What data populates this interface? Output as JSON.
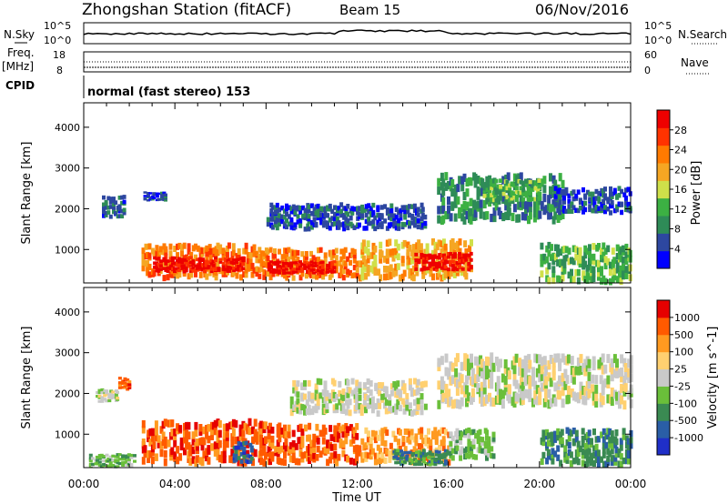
{
  "header": {
    "station": "Zhongshan Station (fitACF)",
    "beam": "Beam 15",
    "date": "06/Nov/2016"
  },
  "sky_panel": {
    "left_label": "N.Sky",
    "right_label": "N.Search",
    "left_ticks": [
      "10^5",
      "10^0"
    ],
    "right_ticks": [
      "10^5",
      "10^0"
    ]
  },
  "freq_panel": {
    "left_label_1": "Freq.",
    "left_label_2": "[MHz]",
    "right_label": "Nave",
    "left_ticks": [
      "18",
      "8"
    ],
    "right_ticks": [
      "60",
      "0"
    ]
  },
  "cpid_panel": {
    "label": "CPID",
    "text": "normal (fast stereo) 153"
  },
  "colors": {
    "power": [
      "#0000ff",
      "#2d47a0",
      "#2e8b57",
      "#3cb043",
      "#cfe04a",
      "#f5a623",
      "#ff7a00",
      "#ff3300",
      "#ee0000"
    ],
    "velocity": [
      "#e60000",
      "#ff5a00",
      "#ff9a20",
      "#ffd070",
      "#c9c9c9",
      "#6abf3a",
      "#3a8a52",
      "#2a5ea6",
      "#1f2fc8"
    ]
  },
  "chart_data": [
    {
      "type": "heatmap",
      "name": "power",
      "ylabel": "Slant Range [km]",
      "xlabel": "",
      "y_ticks": [
        "1000",
        "2000",
        "3000",
        "4000"
      ],
      "ylim": [
        180,
        4600
      ],
      "x_ticks": [
        "00:00",
        "04:00",
        "08:00",
        "12:00",
        "16:00",
        "20:00",
        "00:00"
      ],
      "colorbar_label": "Power [dB]",
      "colorbar_ticks": [
        "4",
        "8",
        "12",
        "16",
        "20",
        "24",
        "28"
      ],
      "blobs": [
        {
          "t": [
            0.8,
            1.8
          ],
          "r": [
            1800,
            2300
          ],
          "level": 1
        },
        {
          "t": [
            2.6,
            3.6
          ],
          "r": [
            2200,
            2400
          ],
          "level": 1
        },
        {
          "t": [
            2.5,
            7.5
          ],
          "r": [
            300,
            1100
          ],
          "level": 6
        },
        {
          "t": [
            3.0,
            7.0
          ],
          "r": [
            450,
            800
          ],
          "level": 8
        },
        {
          "t": [
            7.5,
            12.0
          ],
          "r": [
            300,
            1000
          ],
          "level": 6
        },
        {
          "t": [
            8.0,
            11.0
          ],
          "r": [
            400,
            700
          ],
          "level": 8
        },
        {
          "t": [
            12.0,
            17.0
          ],
          "r": [
            300,
            1200
          ],
          "level": 5
        },
        {
          "t": [
            14.5,
            17.0
          ],
          "r": [
            500,
            900
          ],
          "level": 8
        },
        {
          "t": [
            8.0,
            15.0
          ],
          "r": [
            1500,
            2100
          ],
          "level": 1
        },
        {
          "t": [
            15.5,
            21.0
          ],
          "r": [
            1700,
            2800
          ],
          "level": 2
        },
        {
          "t": [
            17.5,
            20.0
          ],
          "r": [
            2200,
            2700
          ],
          "level": 3
        },
        {
          "t": [
            20.5,
            24.0
          ],
          "r": [
            1900,
            2500
          ],
          "level": 1
        },
        {
          "t": [
            20.0,
            24.0
          ],
          "r": [
            200,
            1100
          ],
          "level": 3
        }
      ]
    },
    {
      "type": "heatmap",
      "name": "velocity",
      "ylabel": "Slant Range [km]",
      "xlabel": "Time UT",
      "y_ticks": [
        "1000",
        "2000",
        "3000",
        "4000"
      ],
      "ylim": [
        180,
        4600
      ],
      "x_ticks": [
        "00:00",
        "04:00",
        "08:00",
        "12:00",
        "16:00",
        "20:00",
        "00:00"
      ],
      "colorbar_label": "Velocity [m s^-1]",
      "colorbar_ticks": [
        "-1000",
        "-500",
        "-100",
        "-25",
        "25",
        "100",
        "500",
        "1000"
      ],
      "blobs": [
        {
          "t": [
            0.2,
            2.2
          ],
          "r": [
            200,
            500
          ],
          "level": 5
        },
        {
          "t": [
            1.5,
            2.0
          ],
          "r": [
            2100,
            2400
          ],
          "level": 1
        },
        {
          "t": [
            2.5,
            8.0
          ],
          "r": [
            300,
            1300
          ],
          "level": 1
        },
        {
          "t": [
            6.5,
            7.4
          ],
          "r": [
            300,
            800
          ],
          "level": 7
        },
        {
          "t": [
            8.0,
            12.0
          ],
          "r": [
            300,
            1200
          ],
          "level": 1
        },
        {
          "t": [
            12.0,
            16.0
          ],
          "r": [
            300,
            1100
          ],
          "level": 2
        },
        {
          "t": [
            13.5,
            16.0
          ],
          "r": [
            250,
            600
          ],
          "level": 6
        },
        {
          "t": [
            16.0,
            18.0
          ],
          "r": [
            400,
            1100
          ],
          "level": 5
        },
        {
          "t": [
            9.0,
            15.0
          ],
          "r": [
            1500,
            2300
          ],
          "level": 4
        },
        {
          "t": [
            15.5,
            24.0
          ],
          "r": [
            1700,
            2900
          ],
          "level": 4
        },
        {
          "t": [
            20.0,
            24.0
          ],
          "r": [
            250,
            1100
          ],
          "level": 6
        },
        {
          "t": [
            0.5,
            1.5
          ],
          "r": [
            1800,
            2100
          ],
          "level": 4
        }
      ]
    }
  ]
}
